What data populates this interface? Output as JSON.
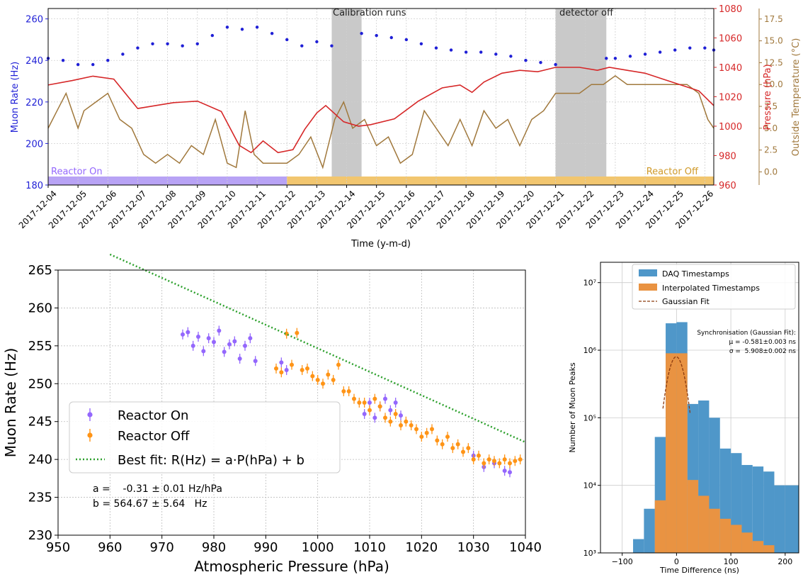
{
  "colors": {
    "blue": "#1f1fd6",
    "red": "#d62728",
    "brown": "#a0783c",
    "purple": "#9467fd",
    "orange": "#ff9416",
    "green": "#2ca02c",
    "gray": "#bfbfbf",
    "lavender": "#b8a3f5",
    "sand": "#f2c66f",
    "histBlue": "#4f97c9",
    "histOrange": "#e99342",
    "fitDark": "#8b3a0f"
  },
  "chart_data": [
    {
      "type": "line",
      "xlabel": "Time (y-m-d)",
      "x_ticks": [
        "2017-12-04",
        "2017-12-05",
        "2017-12-06",
        "2017-12-07",
        "2017-12-08",
        "2017-12-09",
        "2017-12-10",
        "2017-12-11",
        "2017-12-12",
        "2017-12-13",
        "2017-12-14",
        "2017-12-15",
        "2017-12-16",
        "2017-12-17",
        "2017-12-18",
        "2017-12-19",
        "2017-12-20",
        "2017-12-21",
        "2017-12-22",
        "2017-12-23",
        "2017-12-24",
        "2017-12-25",
        "2017-12-26"
      ],
      "x_range_days": [
        0,
        22.3
      ],
      "axes": [
        {
          "label": "Muon Rate (Hz)",
          "range": [
            180,
            265
          ],
          "ticks": [
            "180",
            "200",
            "220",
            "240",
            "260"
          ]
        },
        {
          "label": "Pressure (hPa)",
          "range": [
            960,
            1080
          ],
          "ticks": [
            "960",
            "980",
            "1000",
            "1020",
            "1040",
            "1060",
            "1080"
          ]
        },
        {
          "label": "Outside Temperature (°C)",
          "range": [
            -1.5,
            18.7
          ],
          "ticks": [
            "0.0",
            "2.5",
            "5.0",
            "7.5",
            "10.0",
            "12.5",
            "15.0",
            "17.5"
          ]
        }
      ],
      "annotations": {
        "calibration": {
          "label": "Calibration runs",
          "from_day": 9.5,
          "to_day": 10.5
        },
        "detector_off": {
          "label": "detector off",
          "from_day": 17.0,
          "to_day": 18.7
        },
        "reactor_on": {
          "label": "Reactor On",
          "from_day": 0,
          "to_day": 8.0
        },
        "reactor_off": {
          "label": "Reactor Off",
          "from_day": 8.0,
          "to_day": 22.3
        }
      },
      "series": [
        {
          "name": "Muon Rate",
          "axis": 0,
          "style": "dots",
          "x": [
            0,
            0.5,
            1,
            1.5,
            2,
            2.5,
            3,
            3.5,
            4,
            4.5,
            5,
            5.5,
            6,
            6.5,
            7,
            7.5,
            8,
            8.5,
            9,
            9.5,
            10.5,
            11,
            11.5,
            12,
            12.5,
            13,
            13.5,
            14,
            14.5,
            15,
            15.5,
            16,
            16.5,
            17,
            18.7,
            19,
            19.5,
            20,
            20.5,
            21,
            21.5,
            22,
            22.3
          ],
          "values": [
            241,
            240,
            238,
            238,
            240,
            243,
            246,
            248,
            248,
            247,
            248,
            252,
            256,
            255,
            256,
            253,
            250,
            247,
            249,
            247,
            253,
            252,
            251,
            250,
            248,
            246,
            245,
            244,
            244,
            243,
            242,
            240,
            239,
            238,
            241,
            241,
            242,
            243,
            244,
            245,
            246,
            246,
            245
          ]
        },
        {
          "name": "Pressure",
          "axis": 1,
          "style": "line",
          "x": [
            0,
            0.8,
            1.5,
            2.2,
            3,
            3.6,
            4.2,
            5,
            5.8,
            6.4,
            6.8,
            7.2,
            7.7,
            8.2,
            8.6,
            9,
            9.3,
            9.9,
            10.4,
            10.8,
            11.6,
            12.4,
            13.2,
            13.8,
            14.2,
            14.6,
            15.2,
            15.8,
            16.4,
            17,
            17.8,
            18.4,
            18.8,
            19.4,
            20,
            20.6,
            21.2,
            21.8,
            22.3
          ],
          "values": [
            1028,
            1031,
            1034,
            1032,
            1012,
            1014,
            1016,
            1017,
            1010,
            987,
            982,
            990,
            982,
            984,
            998,
            1009,
            1014,
            1003,
            1000,
            1001,
            1005,
            1017,
            1026,
            1028,
            1023,
            1030,
            1036,
            1038,
            1037,
            1040,
            1040,
            1038,
            1040,
            1038,
            1036,
            1032,
            1028,
            1024,
            1014
          ]
        },
        {
          "name": "Outside Temperature",
          "axis": 2,
          "style": "line",
          "x": [
            0,
            0.3,
            0.6,
            1.0,
            1.2,
            1.6,
            2.0,
            2.4,
            2.8,
            3.2,
            3.6,
            4.0,
            4.4,
            4.8,
            5.2,
            5.6,
            6.0,
            6.3,
            6.6,
            6.9,
            7.2,
            7.6,
            8.0,
            8.4,
            8.8,
            9.2,
            9.6,
            9.9,
            10.2,
            10.6,
            11.0,
            11.4,
            11.8,
            12.2,
            12.6,
            13.0,
            13.4,
            13.8,
            14.2,
            14.6,
            15.0,
            15.4,
            15.8,
            16.2,
            16.6,
            17.0,
            17.4,
            17.8,
            18.2,
            18.6,
            19.0,
            19.4,
            19.8,
            20.2,
            20.6,
            21.0,
            21.4,
            21.8,
            22.1,
            22.3
          ],
          "values": [
            5,
            7,
            9,
            5,
            7,
            8,
            9,
            6,
            5,
            2,
            1,
            2,
            1,
            3,
            2,
            6,
            1,
            0.5,
            7,
            2,
            1,
            1,
            1,
            2,
            4,
            0.5,
            6,
            8,
            5,
            6,
            3,
            4,
            1,
            2,
            7,
            5,
            3,
            6,
            3,
            7,
            5,
            6,
            3,
            6,
            7,
            9,
            9,
            9,
            10,
            10,
            11,
            10,
            10,
            10,
            10,
            10,
            10,
            9,
            6,
            5
          ]
        }
      ]
    },
    {
      "type": "scatter",
      "xlabel": "Atmospheric Pressure (hPa)",
      "ylabel": "Muon Rate (Hz)",
      "xlim": [
        950,
        1040
      ],
      "ylim": [
        230,
        265
      ],
      "x_ticks": [
        "950",
        "960",
        "970",
        "980",
        "990",
        "1000",
        "1010",
        "1020",
        "1030",
        "1040"
      ],
      "y_ticks": [
        "230",
        "235",
        "240",
        "245",
        "250",
        "255",
        "260",
        "265"
      ],
      "grid": true,
      "legend": {
        "placement": "center-left",
        "entries": [
          "Reactor On",
          "Reactor Off",
          "Best fit: R(Hz) = a·P(hPa) + b"
        ]
      },
      "fit_text": [
        "a =    -0.31 ± 0.01 Hz/hPa",
        "b = 564.67 ± 5.64   Hz"
      ],
      "fit": {
        "a": -0.31,
        "b": 564.67,
        "x_range": [
          960,
          1040
        ]
      },
      "series": [
        {
          "name": "Reactor On",
          "x": [
            974,
            975,
            976,
            977,
            978,
            979,
            980,
            981,
            982,
            983,
            984,
            985,
            986,
            987,
            988,
            993,
            994,
            1009,
            1010,
            1011,
            1012,
            1013,
            1014,
            1015,
            1016,
            1030,
            1032,
            1034,
            1036,
            1037
          ],
          "values": [
            256.5,
            256.8,
            255,
            256.2,
            254.3,
            256,
            255.5,
            257,
            254.2,
            255.2,
            255.6,
            253.3,
            255,
            256,
            253,
            252.8,
            251.8,
            246,
            247.5,
            245.5,
            247,
            248,
            246.5,
            247.5,
            245.8,
            240.5,
            239,
            239.5,
            238.5,
            238.3
          ]
        },
        {
          "name": "Reactor Off",
          "x": [
            992,
            993,
            994,
            995,
            996,
            997,
            998,
            999,
            1000,
            1001,
            1002,
            1003,
            1004,
            1005,
            1006,
            1007,
            1008,
            1009,
            1010,
            1011,
            1012,
            1013,
            1014,
            1015,
            1016,
            1017,
            1018,
            1019,
            1020,
            1021,
            1022,
            1023,
            1024,
            1025,
            1026,
            1027,
            1028,
            1029,
            1030,
            1031,
            1032,
            1033,
            1034,
            1035,
            1036,
            1037,
            1038,
            1039
          ],
          "values": [
            252,
            251.5,
            256.6,
            252.5,
            256.7,
            251.8,
            252,
            251,
            250.5,
            250,
            251.2,
            250.5,
            252.5,
            249,
            249,
            248,
            247.5,
            247.5,
            246.5,
            248,
            247,
            245.5,
            245,
            246,
            244.5,
            245,
            244.5,
            244,
            243,
            243.5,
            244,
            242.5,
            242,
            243,
            241.5,
            242,
            241,
            241.5,
            240,
            240.5,
            239.5,
            240,
            239.8,
            239.5,
            240,
            239.5,
            239.8,
            240
          ]
        }
      ]
    },
    {
      "type": "bar",
      "xlabel": "Time Difference (ns)",
      "ylabel": "Number of Muon Peaks",
      "yscale": "log",
      "xlim": [
        -140,
        225
      ],
      "ylim": [
        1000,
        20000000
      ],
      "x_ticks": [
        "−100",
        "0",
        "100",
        "200"
      ],
      "y_ticks": [
        "10³",
        "10⁴",
        "10⁵",
        "10⁶",
        "10⁷"
      ],
      "legend": {
        "placement": "top-right",
        "entries": [
          "DAQ Timestamps",
          "Interpolated Timestamps",
          "Gaussian Fit"
        ]
      },
      "fit_text": [
        "Synchronisation (Gaussian Fit):",
        "μ = -0.581±0.003 ns",
        "σ =  5.908±0.002 ns"
      ],
      "gaussian": {
        "mu": -0.581,
        "sigma": 5.908
      },
      "bin_edges": [
        -100,
        -80,
        -60,
        -40,
        -20,
        0,
        20,
        40,
        60,
        80,
        100,
        120,
        140,
        160,
        180,
        200,
        225
      ],
      "series": [
        {
          "name": "DAQ Timestamps",
          "values": [
            1000,
            1600,
            4500,
            52000,
            2500000,
            2600000,
            160000,
            180000,
            100000,
            35000,
            30000,
            20000,
            19000,
            16000,
            10000,
            10000
          ]
        },
        {
          "name": "Interpolated Timestamps",
          "values": [
            1000,
            1000,
            1000,
            6000,
            900000,
            900000,
            12000,
            7000,
            4500,
            3200,
            2600,
            2000,
            1500,
            1300,
            1000,
            1000
          ]
        }
      ]
    }
  ]
}
